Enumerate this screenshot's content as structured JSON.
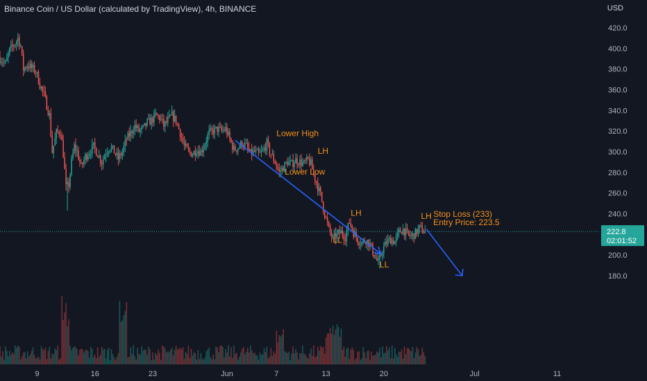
{
  "header": {
    "title": "Binance Coin / US Dollar (calculated by TradingView), 4h, BINANCE",
    "currency": "USD"
  },
  "price_label": {
    "value": "222.8",
    "countdown": "02:01:52"
  },
  "colors": {
    "up": "#26a69a",
    "down": "#ef5350",
    "arrow": "#2962ff",
    "annotation": "#f7931a",
    "label_bg": "#26a69a"
  },
  "chart_data": {
    "type": "candlestick",
    "title": "Binance Coin / US Dollar (calculated by TradingView), 4h, BINANCE",
    "ylabel": "USD",
    "ylim": [
      165,
      432
    ],
    "y_ticks": [
      420.0,
      400.0,
      380.0,
      360.0,
      340.0,
      320.0,
      300.0,
      280.0,
      260.0,
      240.0,
      220.0,
      200.0,
      180.0
    ],
    "y_tick_labels": [
      "420.0",
      "400.0",
      "380.0",
      "360.0",
      "340.0",
      "320.0",
      "300.0",
      "280.0",
      "260.0",
      "240.0",
      "220.0",
      "200.0",
      "180.0"
    ],
    "x_ticks": [
      {
        "label": "9",
        "date": "2021-05-09"
      },
      {
        "label": "16",
        "date": "2021-05-16"
      },
      {
        "label": "23",
        "date": "2021-05-23"
      },
      {
        "label": "Jun",
        "date": "2021-06-01"
      },
      {
        "label": "7",
        "date": "2021-06-07"
      },
      {
        "label": "13",
        "date": "2021-06-13"
      },
      {
        "label": "20",
        "date": "2021-06-20"
      },
      {
        "label": "Jul",
        "date": "2021-07-01"
      },
      {
        "label": "11",
        "date": "2021-07-11"
      }
    ],
    "x_range": [
      "2021-05-04T12:00",
      "2021-07-16T00:00"
    ],
    "price_path": [
      [
        "2021-05-04T12:00",
        392
      ],
      [
        "2021-05-05T08:00",
        385
      ],
      [
        "2021-05-05T20:00",
        398
      ],
      [
        "2021-05-06T12:00",
        405
      ],
      [
        "2021-05-06T20:00",
        410
      ],
      [
        "2021-05-07T04:00",
        402
      ],
      [
        "2021-05-07T12:00",
        380
      ],
      [
        "2021-05-08T00:00",
        384
      ],
      [
        "2021-05-08T16:00",
        380
      ],
      [
        "2021-05-09T00:00",
        378
      ],
      [
        "2021-05-09T12:00",
        365
      ],
      [
        "2021-05-10T00:00",
        355
      ],
      [
        "2021-05-10T16:00",
        335
      ],
      [
        "2021-05-11T00:00",
        300
      ],
      [
        "2021-05-11T12:00",
        318
      ],
      [
        "2021-05-12T00:00",
        320
      ],
      [
        "2021-05-12T08:00",
        298
      ],
      [
        "2021-05-12T16:00",
        265
      ],
      [
        "2021-05-13T00:00",
        268
      ],
      [
        "2021-05-13T08:00",
        290
      ],
      [
        "2021-05-13T16:00",
        305
      ],
      [
        "2021-05-14T00:00",
        300
      ],
      [
        "2021-05-14T12:00",
        285
      ],
      [
        "2021-05-15T00:00",
        295
      ],
      [
        "2021-05-15T12:00",
        300
      ],
      [
        "2021-05-16T00:00",
        305
      ],
      [
        "2021-05-16T12:00",
        298
      ],
      [
        "2021-05-17T00:00",
        290
      ],
      [
        "2021-05-17T12:00",
        300
      ],
      [
        "2021-05-18T00:00",
        305
      ],
      [
        "2021-05-18T12:00",
        300
      ],
      [
        "2021-05-19T00:00",
        293
      ],
      [
        "2021-05-19T12:00",
        300
      ],
      [
        "2021-05-20T00:00",
        312
      ],
      [
        "2021-05-20T12:00",
        318
      ],
      [
        "2021-05-21T00:00",
        325
      ],
      [
        "2021-05-21T12:00",
        320
      ],
      [
        "2021-05-22T00:00",
        322
      ],
      [
        "2021-05-22T12:00",
        328
      ],
      [
        "2021-05-23T00:00",
        330
      ],
      [
        "2021-05-23T12:00",
        335
      ],
      [
        "2021-05-24T00:00",
        333
      ],
      [
        "2021-05-24T12:00",
        325
      ],
      [
        "2021-05-25T00:00",
        330
      ],
      [
        "2021-05-25T12:00",
        335
      ],
      [
        "2021-05-26T00:00",
        330
      ],
      [
        "2021-05-26T12:00",
        318
      ],
      [
        "2021-05-27T00:00",
        305
      ],
      [
        "2021-05-27T12:00",
        300
      ],
      [
        "2021-05-28T00:00",
        298
      ],
      [
        "2021-05-28T12:00",
        302
      ],
      [
        "2021-05-29T00:00",
        300
      ],
      [
        "2021-05-29T12:00",
        308
      ],
      [
        "2021-05-30T00:00",
        318
      ],
      [
        "2021-05-30T12:00",
        320
      ],
      [
        "2021-05-31T00:00",
        322
      ],
      [
        "2021-05-31T12:00",
        320
      ],
      [
        "2021-06-01T00:00",
        322
      ],
      [
        "2021-06-01T12:00",
        312
      ],
      [
        "2021-06-02T00:00",
        302
      ],
      [
        "2021-06-02T12:00",
        304
      ],
      [
        "2021-06-03T00:00",
        308
      ],
      [
        "2021-06-03T12:00",
        305
      ],
      [
        "2021-06-04T00:00",
        298
      ],
      [
        "2021-06-04T12:00",
        300
      ],
      [
        "2021-06-05T00:00",
        297
      ],
      [
        "2021-06-05T12:00",
        300
      ],
      [
        "2021-06-06T00:00",
        308
      ],
      [
        "2021-06-06T08:00",
        300
      ],
      [
        "2021-06-06T16:00",
        295
      ],
      [
        "2021-06-07T00:00",
        290
      ],
      [
        "2021-06-07T12:00",
        280
      ],
      [
        "2021-06-08T00:00",
        285
      ],
      [
        "2021-06-08T12:00",
        290
      ],
      [
        "2021-06-09T00:00",
        288
      ],
      [
        "2021-06-09T12:00",
        292
      ],
      [
        "2021-06-10T00:00",
        290
      ],
      [
        "2021-06-10T12:00",
        288
      ],
      [
        "2021-06-11T00:00",
        292
      ],
      [
        "2021-06-11T08:00",
        288
      ],
      [
        "2021-06-11T16:00",
        278
      ],
      [
        "2021-06-12T00:00",
        270
      ],
      [
        "2021-06-12T12:00",
        258
      ],
      [
        "2021-06-13T00:00",
        240
      ],
      [
        "2021-06-13T12:00",
        225
      ],
      [
        "2021-06-14T00:00",
        215
      ],
      [
        "2021-06-14T12:00",
        220
      ],
      [
        "2021-06-15T00:00",
        222
      ],
      [
        "2021-06-15T12:00",
        218
      ],
      [
        "2021-06-16T00:00",
        232
      ],
      [
        "2021-06-16T12:00",
        222
      ],
      [
        "2021-06-17T00:00",
        215
      ],
      [
        "2021-06-17T12:00",
        212
      ],
      [
        "2021-06-18T00:00",
        215
      ],
      [
        "2021-06-18T12:00",
        210
      ],
      [
        "2021-06-19T00:00",
        200
      ],
      [
        "2021-06-19T12:00",
        192
      ],
      [
        "2021-06-20T00:00",
        205
      ],
      [
        "2021-06-20T12:00",
        212
      ],
      [
        "2021-06-21T00:00",
        215
      ],
      [
        "2021-06-21T12:00",
        213
      ],
      [
        "2021-06-22T00:00",
        222
      ],
      [
        "2021-06-22T12:00",
        225
      ],
      [
        "2021-06-23T00:00",
        220
      ],
      [
        "2021-06-23T12:00",
        218
      ],
      [
        "2021-06-24T00:00",
        221
      ],
      [
        "2021-06-24T12:00",
        226
      ],
      [
        "2021-06-25T00:00",
        223
      ]
    ],
    "trend_line": {
      "from": [
        "2021-06-02T00:00",
        311
      ],
      "to": [
        "2021-06-19T12:00",
        202
      ],
      "arrow_to": [
        "2021-06-19T16:00",
        203
      ]
    },
    "projection_arrow": {
      "from": [
        "2021-06-25T04:00",
        225
      ],
      "to": [
        "2021-06-29T12:00",
        180
      ]
    },
    "annotations": [
      {
        "text": "Lower High",
        "at": [
          "2021-06-07T00:00",
          315
        ]
      },
      {
        "text": "LH",
        "at": [
          "2021-06-12T00:00",
          298
        ]
      },
      {
        "text": "Lower Low",
        "at": [
          "2021-06-08T00:00",
          278
        ]
      },
      {
        "text": "LH",
        "at": [
          "2021-06-16T00:00",
          238
        ]
      },
      {
        "text": "LL",
        "at": [
          "2021-06-13T20:00",
          212
        ]
      },
      {
        "text": "LL",
        "at": [
          "2021-06-19T12:00",
          188
        ]
      },
      {
        "text": "LH",
        "at": [
          "2021-06-24T12:00",
          235
        ]
      },
      {
        "text": "Stop Loss (233)",
        "at": [
          "2021-06-26T00:00",
          237
        ]
      },
      {
        "text": "Entry Price: 223.5",
        "at": [
          "2021-06-26T00:00",
          229
        ]
      }
    ],
    "current_price": 222.8,
    "grid": false,
    "volume_bars": true
  }
}
